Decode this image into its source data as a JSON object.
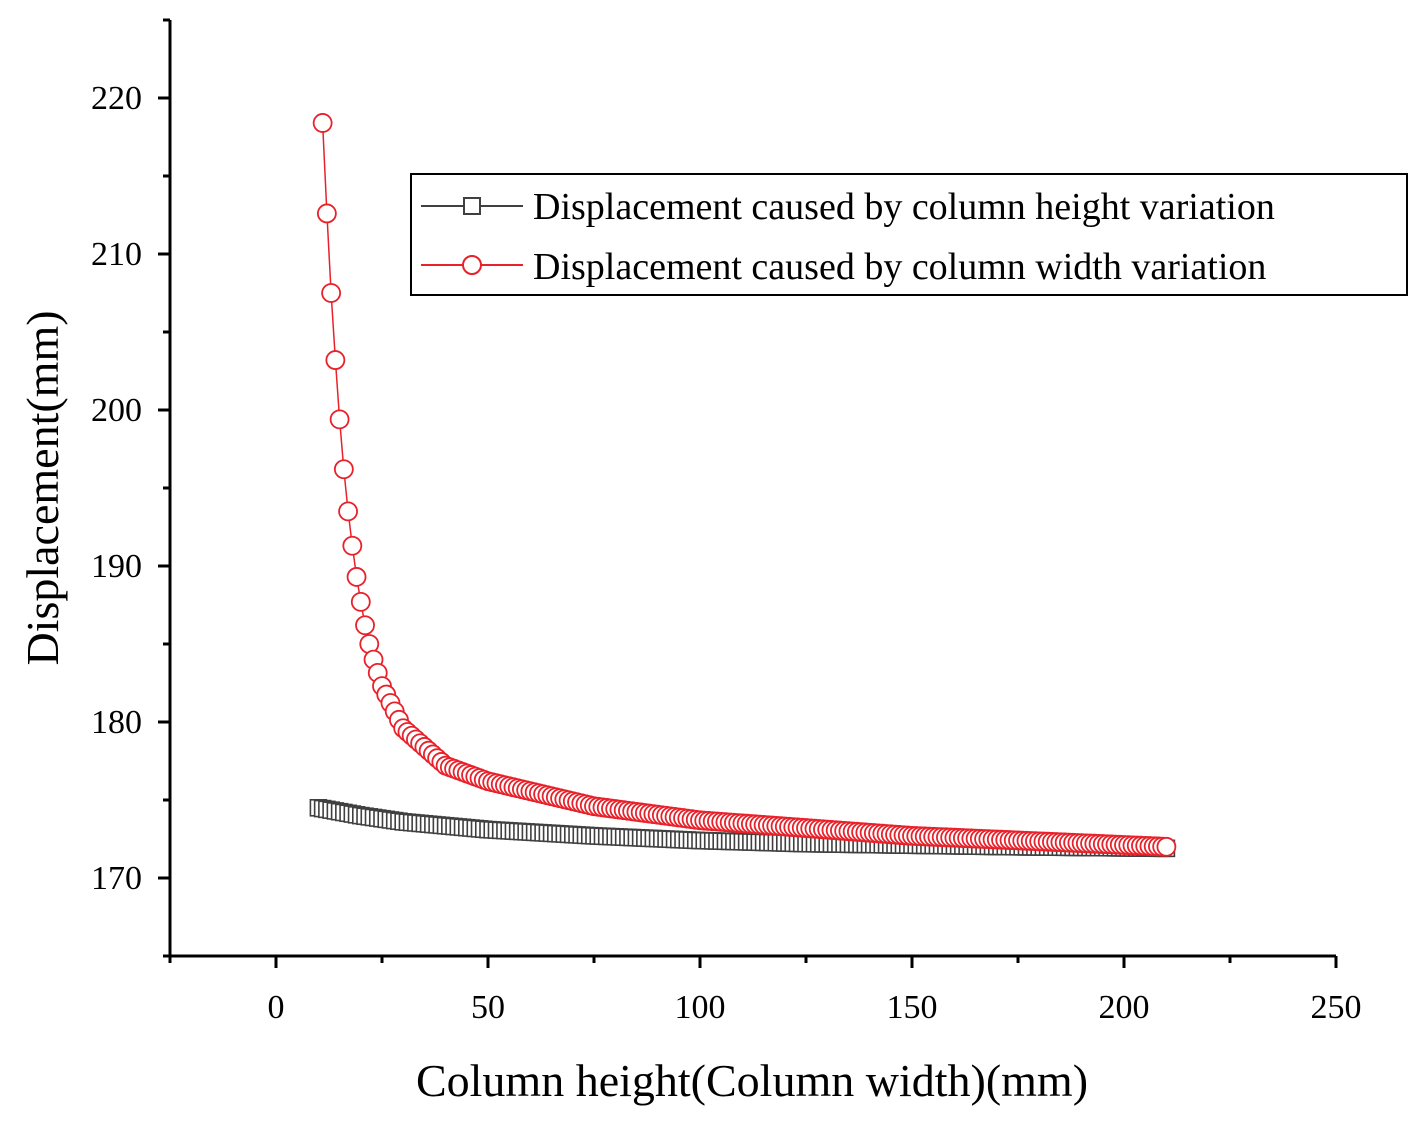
{
  "chart_data": {
    "type": "scatter",
    "title": "",
    "xlabel": "Column height(Column width)(mm)",
    "ylabel": "Displacement(mm)",
    "xlim": [
      -25,
      250
    ],
    "ylim": [
      165,
      225
    ],
    "x_ticks": [
      "0",
      "50",
      "100",
      "150",
      "200",
      "250"
    ],
    "y_ticks": [
      "170",
      "180",
      "190",
      "200",
      "210",
      "220"
    ],
    "legend_position": "top-right",
    "series": [
      {
        "name": "Displacement caused by column height variation",
        "marker": "square",
        "color": "#404040",
        "x_range": [
          10,
          210
        ],
        "x_step": 1,
        "y_at_x": [
          [
            10,
            174.5
          ],
          [
            20,
            174.0
          ],
          [
            30,
            173.6
          ],
          [
            50,
            173.1
          ],
          [
            75,
            172.7
          ],
          [
            100,
            172.4
          ],
          [
            125,
            172.2
          ],
          [
            150,
            172.1
          ],
          [
            175,
            172.0
          ],
          [
            210,
            171.9
          ]
        ]
      },
      {
        "name": "Displacement caused by column width variation",
        "marker": "circle",
        "color": "#e8212a",
        "x_range": [
          11,
          210
        ],
        "x_step": 1,
        "y_at_x": [
          [
            11,
            218.4
          ],
          [
            12,
            212.6
          ],
          [
            13,
            207.5
          ],
          [
            14,
            203.2
          ],
          [
            15,
            199.4
          ],
          [
            16,
            196.2
          ],
          [
            17,
            193.5
          ],
          [
            18,
            191.3
          ],
          [
            19,
            189.3
          ],
          [
            20,
            187.7
          ],
          [
            21,
            186.2
          ],
          [
            22,
            185.0
          ],
          [
            23,
            184.0
          ],
          [
            25,
            182.3
          ],
          [
            30,
            179.6
          ],
          [
            40,
            177.2
          ],
          [
            50,
            176.2
          ],
          [
            75,
            174.6
          ],
          [
            100,
            173.7
          ],
          [
            150,
            172.7
          ],
          [
            210,
            172.0
          ]
        ]
      }
    ]
  }
}
